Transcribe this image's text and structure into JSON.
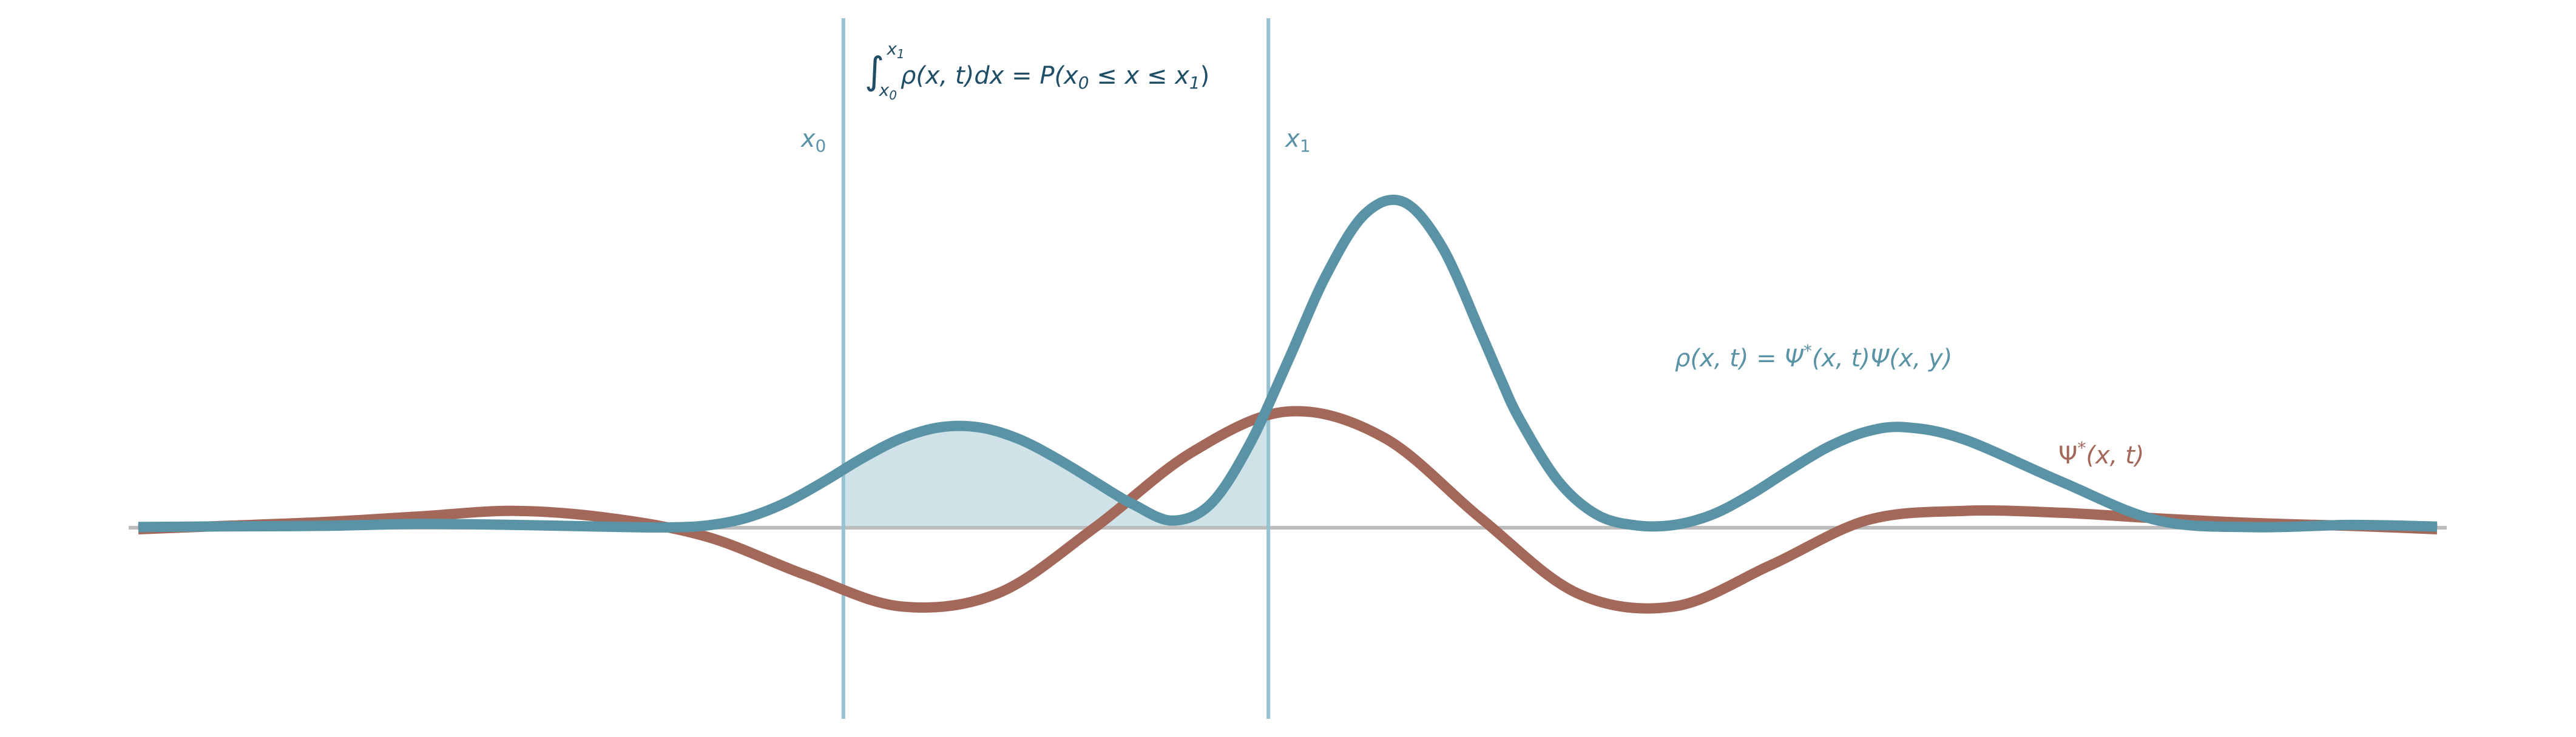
{
  "chart_data": {
    "type": "line",
    "title": "",
    "xlabel": "",
    "ylabel": "",
    "grid": false,
    "xlim": [
      -6,
      6
    ],
    "ylim": [
      -1,
      1.6
    ],
    "shaded_interval": [
      -2.3,
      -0.1
    ],
    "markers": [
      {
        "name": "x0",
        "x": -2.3,
        "label": "x",
        "sub": "0"
      },
      {
        "name": "x1",
        "x": -0.1,
        "label": "x",
        "sub": "1"
      }
    ],
    "series": [
      {
        "name": "ρ(x, t) = Ψ*(x, t)Ψ(x, y)",
        "color": "#5b93a6",
        "x": [
          -5.95,
          -5.5,
          -5,
          -4.5,
          -4,
          -3.5,
          -3.2,
          -3,
          -2.8,
          -2.6,
          -2.4,
          -2.2,
          -2,
          -1.8,
          -1.6,
          -1.4,
          -1.2,
          -1,
          -0.9,
          -0.8,
          -0.6,
          -0.4,
          -0.2,
          0,
          0.2,
          0.4,
          0.6,
          0.8,
          1,
          1.1,
          1.2,
          1.4,
          1.6,
          1.8,
          2,
          2.2,
          2.4,
          2.6,
          2.8,
          3,
          3.2,
          3.5,
          4,
          4.5,
          5,
          5.5,
          5.95
        ],
        "y": [
          0.004,
          0.007,
          0.01,
          0.02,
          0.015,
          0.005,
          0.002,
          0.013,
          0.053,
          0.133,
          0.247,
          0.372,
          0.477,
          0.536,
          0.536,
          0.477,
          0.372,
          0.247,
          0.183,
          0.125,
          0.038,
          0.126,
          0.439,
          0.886,
          1.349,
          1.674,
          1.738,
          1.497,
          1.039,
          0.8,
          0.58,
          0.25,
          0.07,
          0.013,
          0.015,
          0.071,
          0.179,
          0.31,
          0.432,
          0.514,
          0.536,
          0.472,
          0.248,
          0.04,
          0.003,
          0.015,
          0.006
        ]
      },
      {
        "name": "Ψ*(x, t)",
        "color": "#a3685a",
        "x": [
          -5.95,
          -5.5,
          -5,
          -4.5,
          -4,
          -3.5,
          -3,
          -2.5,
          -2,
          -1.5,
          -1,
          -0.5,
          0,
          0.5,
          1,
          1.5,
          2,
          2.5,
          3,
          3.5,
          4,
          4.5,
          5,
          5.5,
          5.95
        ],
        "y": [
          -0.008,
          0.01,
          0.03,
          0.06,
          0.09,
          0.05,
          -0.05,
          -0.25,
          -0.42,
          -0.35,
          0,
          0.4,
          0.62,
          0.48,
          0.05,
          -0.35,
          -0.42,
          -0.2,
          0.04,
          0.09,
          0.08,
          0.05,
          0.025,
          0.01,
          -0.008
        ]
      }
    ],
    "annotations": {
      "integral_upper": "x",
      "integral_upper_sub": "1",
      "integral_lower": "x",
      "integral_lower_sub": "0",
      "integral_body": "ρ(x, t)dx = P(x",
      "integral_sub0": "0",
      "integral_mid": " ≤ x ≤ x",
      "integral_sub1": "1",
      "integral_end": ")",
      "rho_label": "ρ(x, t) = Ψ",
      "rho_star": "*",
      "rho_rest": "(x, t)Ψ(x, y)",
      "psi_label": "Ψ",
      "psi_star": "*",
      "psi_rest": "(x, t)"
    },
    "colors": {
      "marker_line": "#96c3cf",
      "marker_label": "#5b93a6",
      "shade": "#cfe2e8",
      "axis": "#bdbdbd",
      "integral_text": "#1f4e66",
      "rho_text": "#5b93a6",
      "psi_text": "#a3685a"
    }
  }
}
